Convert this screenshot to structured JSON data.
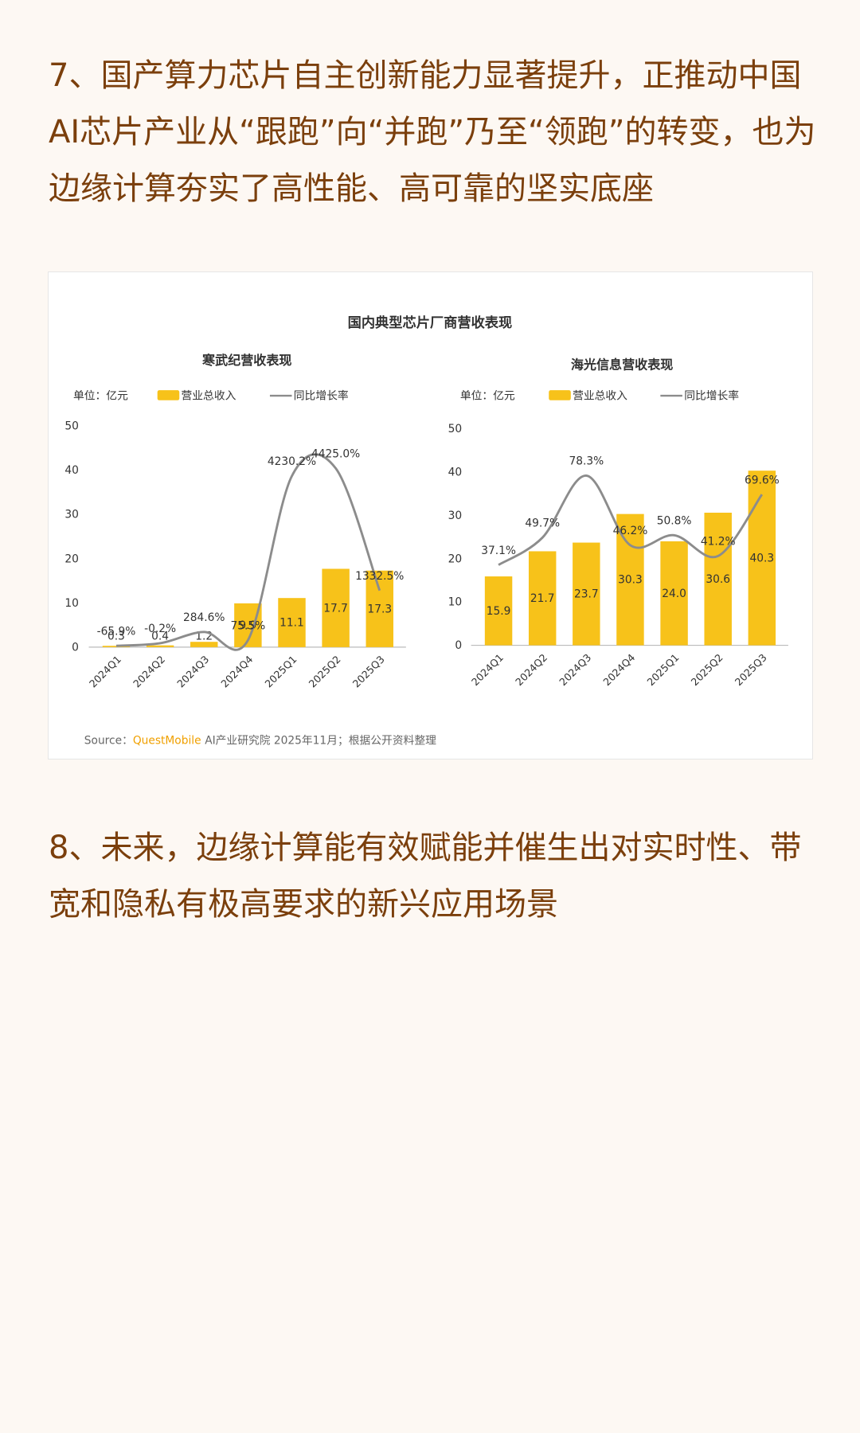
{
  "paragraphs": [
    "7、国产算力芯片自主创新能力显著提升，正推动中国AI芯片产业从“跟跑”向“并跑”乃至“领跑”的转变，也为边缘计算夯实了高性能、高可靠的坚实底座",
    "8、未来，边缘计算能有效赋能并催生出对实时性、带宽和隐私有极高要求的新兴应用场景"
  ],
  "figure": {
    "title": "国内典型芯片厂商营收表现",
    "source_prefix": "Source：",
    "source_brand": "QuestMobile",
    "source_rest": "AI产业研究院 2025年11月；根据公开资料整理"
  },
  "chart_data": [
    {
      "type": "bar_line",
      "title": "寒武纪营收表现",
      "unit": "单位：亿元",
      "categories": [
        "2024Q1",
        "2024Q2",
        "2024Q3",
        "2024Q4",
        "2025Q1",
        "2025Q2",
        "2025Q3"
      ],
      "ylim": [
        0,
        50
      ],
      "yticks": [
        0,
        10,
        20,
        30,
        40,
        50
      ],
      "y2lim": [
        -100,
        5500
      ],
      "series": [
        {
          "name": "营业总收入",
          "color": "#f7c21a",
          "values": [
            0.3,
            0.4,
            1.2,
            9.9,
            11.1,
            17.7,
            17.3
          ]
        },
        {
          "name": "同比增长率",
          "color": "#8c8c8c",
          "axis": "y2",
          "values": [
            -65.9,
            -0.2,
            284.6,
            75.5,
            4230.2,
            4425.0,
            1332.5
          ],
          "value_labels": [
            "-65.9%",
            "-0.2%",
            "284.6%",
            "75.5%",
            "4230.2%",
            "4425.0%",
            "1332.5%"
          ]
        }
      ]
    },
    {
      "type": "bar_line",
      "title": "海光信息营收表现",
      "unit": "单位：亿元",
      "categories": [
        "2024Q1",
        "2024Q2",
        "2024Q3",
        "2024Q4",
        "2025Q1",
        "2025Q2",
        "2025Q3"
      ],
      "ylim": [
        0,
        50
      ],
      "yticks": [
        0,
        10,
        20,
        30,
        40,
        50
      ],
      "y2lim": [
        0,
        100
      ],
      "series": [
        {
          "name": "营业总收入",
          "color": "#f7c21a",
          "values": [
            15.9,
            21.7,
            23.7,
            30.3,
            24.0,
            30.6,
            40.3
          ],
          "value_labels": [
            "15.9",
            "21.7",
            "23.7",
            "30.3",
            "24.0",
            "30.6",
            "40.3"
          ]
        },
        {
          "name": "同比增长率",
          "color": "#8c8c8c",
          "axis": "y2",
          "values": [
            37.1,
            49.7,
            78.3,
            46.2,
            50.8,
            41.2,
            69.6
          ],
          "value_labels": [
            "37.1%",
            "49.7%",
            "78.3%",
            "46.2%",
            "50.8%",
            "41.2%",
            "69.6%"
          ]
        }
      ]
    }
  ]
}
